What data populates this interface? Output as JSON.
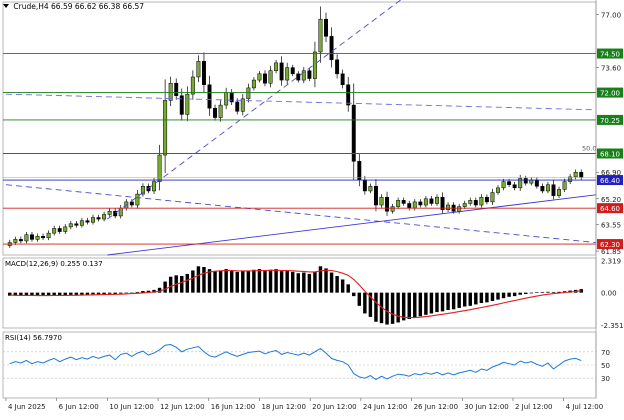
{
  "header": {
    "symbol": "Crude,H4",
    "ohlc": "66.59 66.62 66.38 66.57"
  },
  "chart_data": {
    "type": "candlestick",
    "symbol": "Crude,H4",
    "ohlc_last": [
      66.59,
      66.62,
      66.38,
      66.57
    ],
    "ylim": [
      61.6,
      77.8
    ],
    "price_ticks": [
      "77.00",
      "74.50",
      "73.60",
      "72.00",
      "70.25",
      "68.10",
      "66.90",
      "66.40",
      "65.20",
      "64.60",
      "63.55",
      "62.30",
      "61.85"
    ],
    "x_ticks": [
      "4 Jun 2025",
      "6 Jun 12:00",
      "10 Jun 12:00",
      "12 Jun 12:00",
      "16 Jun 12:00",
      "18 Jun 12:00",
      "20 Jun 12:00",
      "24 Jun 12:00",
      "26 Jun 12:00",
      "30 Jun 12:00",
      "2 Jul 12:00",
      "4 Jul 12:00"
    ],
    "levels": [
      {
        "value": 74.5,
        "label": "74.50",
        "color": "#1a7f1a"
      },
      {
        "value": 72.0,
        "label": "72.00",
        "color": "#1a7f1a"
      },
      {
        "value": 70.25,
        "label": "70.25",
        "color": "#1a7f1a"
      },
      {
        "value": 68.1,
        "label": "68.10",
        "color": "#1a7f1a"
      },
      {
        "value": 66.4,
        "label": "66.40",
        "color": "#2020c0"
      },
      {
        "value": 64.6,
        "label": "64.60",
        "color": "#d01c1c"
      },
      {
        "value": 62.3,
        "label": "62.30",
        "color": "#d01c1c"
      }
    ],
    "fib_label": "50.0",
    "current_price": 66.57,
    "candle_up_color": "#77aa33",
    "candle_down_color": "#000000",
    "close": [
      62.4,
      62.6,
      62.5,
      62.9,
      62.6,
      62.8,
      62.7,
      63.0,
      63.3,
      63.1,
      63.4,
      63.6,
      63.5,
      63.8,
      63.7,
      64.0,
      63.9,
      64.2,
      64.4,
      64.1,
      64.6,
      65.0,
      64.8,
      65.5,
      66.0,
      65.7,
      66.3,
      68.0,
      71.5,
      72.6,
      71.8,
      70.6,
      71.9,
      73.0,
      74.0,
      72.5,
      71.0,
      70.4,
      71.2,
      72.0,
      71.4,
      70.8,
      71.6,
      72.3,
      72.8,
      73.2,
      72.6,
      73.4,
      73.9,
      72.8,
      73.6,
      73.2,
      72.8,
      73.4,
      72.9,
      74.6,
      76.7,
      75.6,
      74.1,
      73.2,
      72.5,
      71.2,
      67.6,
      66.4,
      65.7,
      66.0,
      64.8,
      65.3,
      64.4,
      64.7,
      65.1,
      64.9,
      64.6,
      65.0,
      64.8,
      65.2,
      64.9,
      65.3,
      64.5,
      64.8,
      64.4,
      64.7,
      64.9,
      65.1,
      64.8,
      65.3,
      65.0,
      65.6,
      65.9,
      66.3,
      66.1,
      65.9,
      66.5,
      66.2,
      66.4,
      66.0,
      65.7,
      66.1,
      65.4,
      65.8,
      66.3,
      66.6,
      66.9,
      66.57
    ],
    "macd": {
      "label": "MACD(12,26,9) 0.255 0.137",
      "ylim": [
        -2.55,
        2.5
      ],
      "ticks": [
        "2.319",
        "0.00",
        "-2.351"
      ],
      "histogram": [
        -0.22,
        -0.22,
        -0.2,
        -0.22,
        -0.22,
        -0.2,
        -0.2,
        -0.2,
        -0.18,
        -0.2,
        -0.18,
        -0.16,
        -0.16,
        -0.14,
        -0.14,
        -0.12,
        -0.12,
        -0.1,
        -0.08,
        -0.1,
        -0.06,
        -0.02,
        0.0,
        0.05,
        0.12,
        0.14,
        0.2,
        0.35,
        0.8,
        1.15,
        1.25,
        1.2,
        1.35,
        1.6,
        1.9,
        1.85,
        1.7,
        1.55,
        1.6,
        1.7,
        1.6,
        1.5,
        1.55,
        1.6,
        1.65,
        1.7,
        1.6,
        1.65,
        1.7,
        1.55,
        1.6,
        1.5,
        1.4,
        1.45,
        1.35,
        1.5,
        1.9,
        1.75,
        1.45,
        1.2,
        0.95,
        0.6,
        -0.25,
        -0.95,
        -1.5,
        -1.75,
        -2.1,
        -2.2,
        -2.3,
        -2.25,
        -2.15,
        -2.0,
        -1.9,
        -1.8,
        -1.7,
        -1.6,
        -1.5,
        -1.4,
        -1.35,
        -1.25,
        -1.2,
        -1.1,
        -1.0,
        -0.95,
        -0.85,
        -0.75,
        -0.7,
        -0.6,
        -0.5,
        -0.4,
        -0.3,
        -0.25,
        -0.15,
        -0.1,
        -0.05,
        0.02,
        0.05,
        0.06,
        0.05,
        0.06,
        0.1,
        0.15,
        0.2,
        0.255
      ],
      "signal": [
        -0.18,
        -0.19,
        -0.2,
        -0.2,
        -0.2,
        -0.21,
        -0.21,
        -0.21,
        -0.2,
        -0.2,
        -0.2,
        -0.19,
        -0.19,
        -0.18,
        -0.17,
        -0.16,
        -0.15,
        -0.14,
        -0.13,
        -0.12,
        -0.11,
        -0.09,
        -0.07,
        -0.05,
        -0.02,
        0.01,
        0.05,
        0.1,
        0.25,
        0.45,
        0.6,
        0.75,
        0.9,
        1.05,
        1.25,
        1.4,
        1.5,
        1.55,
        1.58,
        1.6,
        1.6,
        1.58,
        1.57,
        1.57,
        1.58,
        1.6,
        1.6,
        1.61,
        1.62,
        1.6,
        1.6,
        1.58,
        1.55,
        1.53,
        1.5,
        1.5,
        1.58,
        1.62,
        1.6,
        1.52,
        1.4,
        1.25,
        0.95,
        0.55,
        0.1,
        -0.3,
        -0.7,
        -1.05,
        -1.35,
        -1.55,
        -1.7,
        -1.78,
        -1.8,
        -1.8,
        -1.77,
        -1.73,
        -1.68,
        -1.62,
        -1.56,
        -1.5,
        -1.44,
        -1.37,
        -1.3,
        -1.23,
        -1.15,
        -1.07,
        -0.99,
        -0.91,
        -0.83,
        -0.74,
        -0.65,
        -0.57,
        -0.48,
        -0.4,
        -0.32,
        -0.25,
        -0.18,
        -0.12,
        -0.07,
        -0.03,
        0.01,
        0.05,
        0.09,
        0.137
      ]
    },
    "rsi": {
      "label": "RSI(14) 56.7970",
      "ylim": [
        0,
        100
      ],
      "ticks": [
        "100",
        "70",
        "50",
        "30",
        "0"
      ],
      "values": [
        52,
        55,
        53,
        57,
        52,
        55,
        53,
        57,
        60,
        55,
        59,
        62,
        58,
        61,
        59,
        63,
        60,
        63,
        65,
        58,
        66,
        68,
        63,
        68,
        71,
        65,
        68,
        73,
        80,
        81,
        77,
        70,
        74,
        76,
        78,
        70,
        64,
        62,
        66,
        70,
        66,
        63,
        66,
        69,
        70,
        71,
        67,
        70,
        72,
        66,
        69,
        67,
        65,
        68,
        65,
        70,
        75,
        68,
        60,
        57,
        55,
        50,
        37,
        32,
        30,
        34,
        28,
        33,
        29,
        33,
        36,
        35,
        33,
        37,
        35,
        38,
        36,
        39,
        35,
        38,
        35,
        38,
        40,
        42,
        39,
        44,
        42,
        47,
        50,
        54,
        52,
        50,
        56,
        53,
        55,
        51,
        48,
        53,
        44,
        50,
        56,
        59,
        60,
        56.797
      ]
    },
    "trend_lines": [
      {
        "style": "dashed",
        "color": "#4a4ad0",
        "points": [
          [
            "10 Jun 12:00",
            63.9
          ],
          [
            "20 Jun 12:00",
            73.6
          ]
        ]
      },
      {
        "style": "dashed",
        "color": "#6a6ae0",
        "points": [
          [
            "4 Jun 2025",
            71.9
          ],
          [
            "4 Jul 12:00",
            70.95
          ]
        ]
      },
      {
        "style": "dashed",
        "color": "#4a4ad0",
        "points": [
          [
            "4 Jun 2025",
            66.1
          ],
          [
            "4 Jul 12:00",
            62.6
          ]
        ]
      },
      {
        "style": "solid",
        "color": "#3a3ad0",
        "points": [
          [
            "10 Jun 12:00",
            61.6
          ],
          [
            "4 Jul 12:00",
            65.2
          ]
        ]
      }
    ]
  }
}
